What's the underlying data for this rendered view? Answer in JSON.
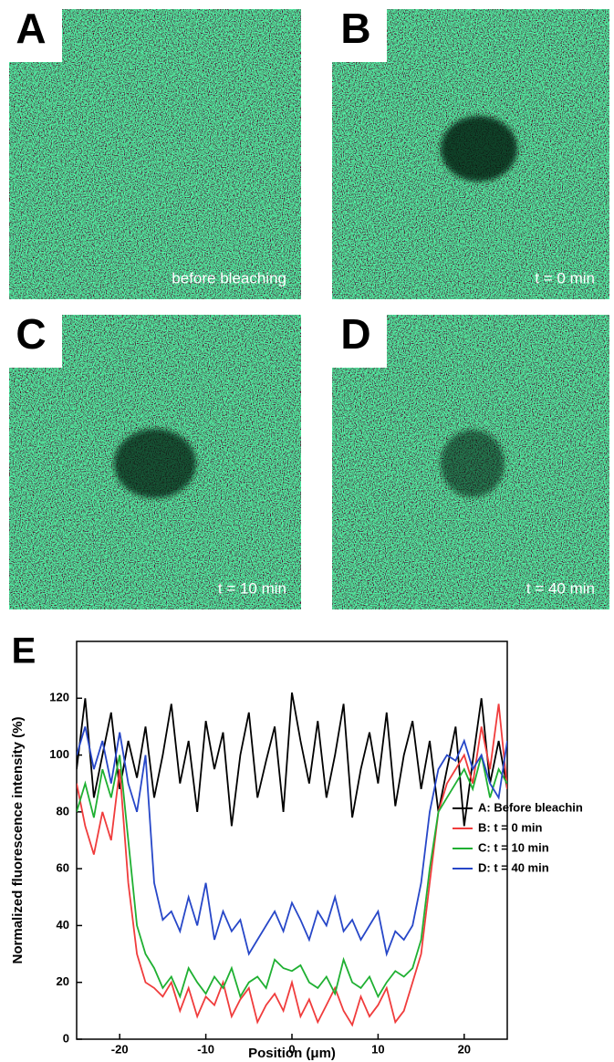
{
  "panels": [
    {
      "label": "A",
      "caption": "before bleaching"
    },
    {
      "label": "B",
      "caption": "t = 0 min"
    },
    {
      "label": "C",
      "caption": "t = 10 min"
    },
    {
      "label": "D",
      "caption": "t = 40 min"
    }
  ],
  "chart_data": {
    "type": "line",
    "panel_label": "E",
    "xlabel": "Position (μm)",
    "ylabel": "Normalized fluorescence intensity (%)",
    "xlim": [
      -25,
      25
    ],
    "ylim": [
      0,
      140
    ],
    "xticks": [
      -20,
      -10,
      0,
      10,
      20
    ],
    "yticks": [
      0,
      20,
      40,
      60,
      80,
      100,
      120
    ],
    "legend": "right",
    "x": [
      -25,
      -24,
      -23,
      -22,
      -21,
      -20,
      -19,
      -18,
      -17,
      -16,
      -15,
      -14,
      -13,
      -12,
      -11,
      -10,
      -9,
      -8,
      -7,
      -6,
      -5,
      -4,
      -3,
      -2,
      -1,
      0,
      1,
      2,
      3,
      4,
      5,
      6,
      7,
      8,
      9,
      10,
      11,
      12,
      13,
      14,
      15,
      16,
      17,
      18,
      19,
      20,
      21,
      22,
      23,
      24,
      25
    ],
    "series": [
      {
        "name": "A: Before bleachin",
        "color": "#000000",
        "values": [
          95,
          120,
          85,
          100,
          115,
          88,
          105,
          92,
          110,
          85,
          100,
          118,
          90,
          105,
          80,
          112,
          95,
          108,
          75,
          100,
          115,
          85,
          98,
          110,
          80,
          122,
          105,
          90,
          112,
          85,
          100,
          118,
          78,
          95,
          108,
          90,
          115,
          82,
          100,
          112,
          88,
          105,
          80,
          95,
          110,
          75,
          98,
          120,
          90,
          105,
          88
        ]
      },
      {
        "name": "B: t = 0 min",
        "color": "#f03c3c",
        "values": [
          90,
          75,
          65,
          80,
          70,
          95,
          55,
          30,
          20,
          18,
          15,
          20,
          10,
          18,
          8,
          15,
          12,
          20,
          8,
          14,
          18,
          6,
          12,
          16,
          10,
          20,
          8,
          14,
          6,
          12,
          18,
          10,
          5,
          15,
          8,
          12,
          18,
          6,
          10,
          20,
          30,
          55,
          80,
          90,
          95,
          100,
          90,
          110,
          95,
          118,
          88
        ]
      },
      {
        "name": "C: t = 10 min",
        "color": "#1fb032",
        "values": [
          80,
          90,
          78,
          95,
          85,
          100,
          70,
          40,
          30,
          25,
          18,
          22,
          15,
          25,
          20,
          16,
          22,
          18,
          25,
          15,
          20,
          22,
          18,
          28,
          25,
          24,
          26,
          20,
          18,
          22,
          16,
          28,
          20,
          18,
          22,
          15,
          20,
          24,
          22,
          25,
          35,
          60,
          80,
          85,
          90,
          95,
          88,
          100,
          85,
          95,
          90
        ]
      },
      {
        "name": "D: t = 40 min",
        "color": "#2747c8",
        "values": [
          100,
          110,
          95,
          105,
          90,
          108,
          90,
          80,
          100,
          55,
          42,
          45,
          38,
          50,
          40,
          55,
          35,
          45,
          38,
          42,
          30,
          35,
          40,
          45,
          38,
          48,
          42,
          35,
          45,
          40,
          50,
          38,
          42,
          35,
          40,
          45,
          30,
          38,
          35,
          40,
          55,
          80,
          95,
          100,
          98,
          105,
          95,
          100,
          90,
          85,
          105
        ]
      }
    ]
  }
}
